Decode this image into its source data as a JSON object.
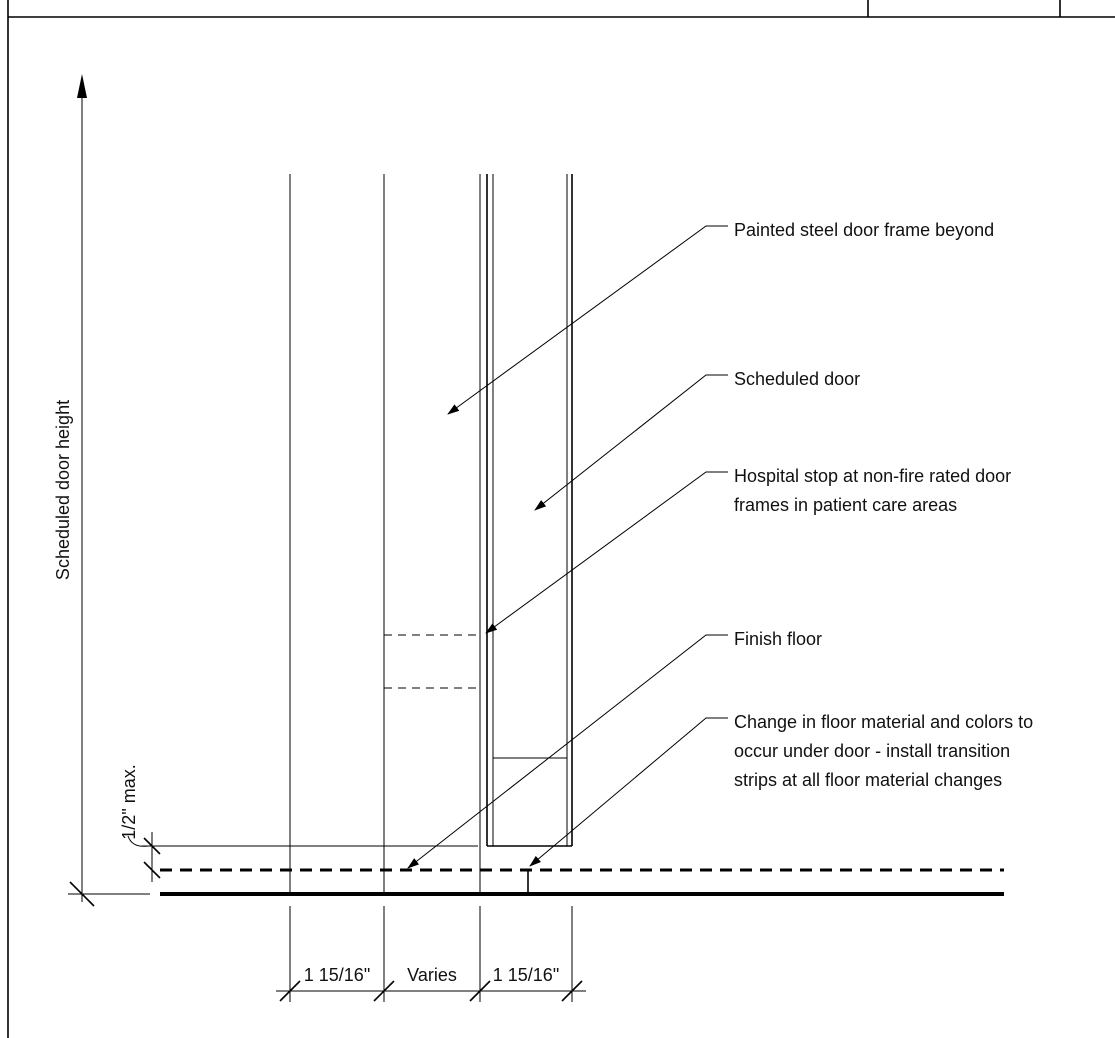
{
  "vertical_dimension": {
    "label": "Scheduled door height"
  },
  "gap_dimension": {
    "label": "1/2\" max."
  },
  "bottom_dimensions": [
    {
      "label": "1 15/16\""
    },
    {
      "label": "Varies"
    },
    {
      "label": "1 15/16\""
    }
  ],
  "callouts": [
    {
      "lines": [
        "Painted steel door frame beyond"
      ]
    },
    {
      "lines": [
        "Scheduled door"
      ]
    },
    {
      "lines": [
        "Hospital stop at non-fire rated door",
        "frames in patient care areas"
      ]
    },
    {
      "lines": [
        "Finish floor"
      ]
    },
    {
      "lines": [
        "Change in floor material and colors to",
        "occur under door - install transition",
        "strips at all floor material changes"
      ]
    }
  ]
}
